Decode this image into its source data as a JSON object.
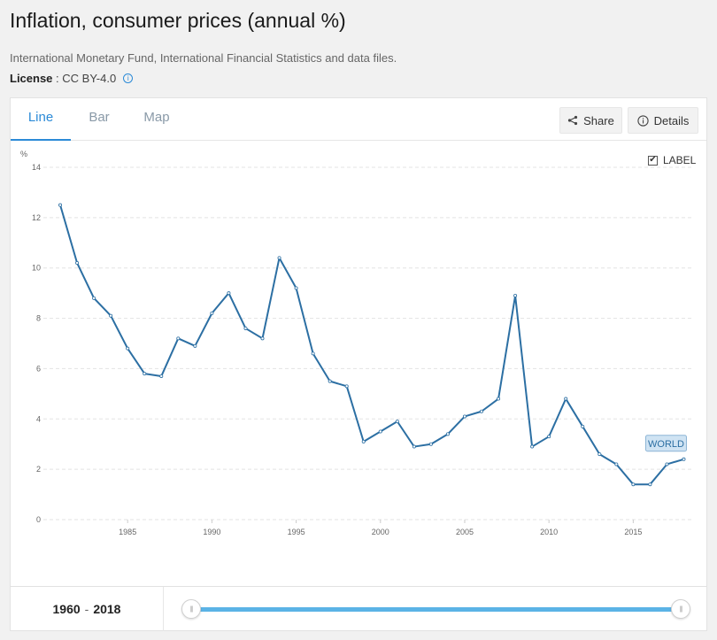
{
  "header": {
    "title": "Inflation, consumer prices (annual %)",
    "source": "International Monetary Fund, International Financial Statistics and data files.",
    "license_label": "License",
    "license_sep": " : ",
    "license_value": "CC BY-4.0",
    "info_icon": "info-icon"
  },
  "tabs": [
    {
      "label": "Line",
      "active": true
    },
    {
      "label": "Bar",
      "active": false
    },
    {
      "label": "Map",
      "active": false
    }
  ],
  "toolbar": {
    "share_label": "Share",
    "share_icon": "share-icon",
    "details_label": "Details",
    "details_icon": "info-icon"
  },
  "label_toggle": {
    "label": "LABEL",
    "checked": true,
    "check_glyph": "✔"
  },
  "chart_data": {
    "type": "line",
    "ylabel": "%",
    "ylim": [
      0,
      14
    ],
    "yticks": [
      0,
      2,
      4,
      6,
      8,
      10,
      12,
      14
    ],
    "xlim": [
      1980,
      2018.5
    ],
    "xticks": [
      1985,
      1990,
      1995,
      2000,
      2005,
      2010,
      2015
    ],
    "grid": true,
    "line_color": "#2c6fa3",
    "series": [
      {
        "name": "WORLD",
        "x": [
          1981,
          1982,
          1983,
          1984,
          1985,
          1986,
          1987,
          1988,
          1989,
          1990,
          1991,
          1992,
          1993,
          1994,
          1995,
          1996,
          1997,
          1998,
          1999,
          2000,
          2001,
          2002,
          2003,
          2004,
          2005,
          2006,
          2007,
          2008,
          2009,
          2010,
          2011,
          2012,
          2013,
          2014,
          2015,
          2016,
          2017,
          2018
        ],
        "values": [
          12.5,
          10.2,
          8.8,
          8.1,
          6.8,
          5.8,
          5.7,
          7.2,
          6.9,
          8.2,
          9.0,
          7.6,
          7.2,
          10.4,
          9.2,
          6.6,
          5.5,
          5.3,
          3.1,
          3.5,
          3.9,
          2.9,
          3.0,
          3.4,
          4.1,
          4.3,
          4.8,
          8.9,
          2.9,
          3.3,
          4.8,
          3.7,
          2.6,
          2.2,
          1.4,
          1.4,
          2.2,
          2.4
        ]
      }
    ]
  },
  "footer": {
    "range_start": "1960",
    "range_sep": "-",
    "range_end": "2018",
    "handle_glyph": "|||"
  }
}
